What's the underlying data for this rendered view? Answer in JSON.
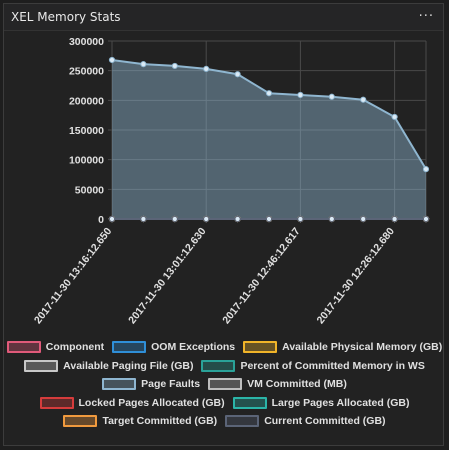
{
  "chart_data": {
    "type": "line",
    "title": "XEL Memory Stats",
    "categories": [
      "2017-11-30 13:16:12.650",
      null,
      null,
      "2017-11-30 13:01:12.630",
      null,
      null,
      "2017-11-30 12:46:12.617",
      null,
      null,
      "2017-11-30 12:26:12.680",
      null
    ],
    "ylim": [
      0,
      300000
    ],
    "yticks": [
      0,
      50000,
      100000,
      150000,
      200000,
      250000,
      300000
    ],
    "grid": true,
    "series": [
      {
        "name": "Component",
        "color": "#e05a7a",
        "values": [
          0,
          0,
          0,
          0,
          0,
          0,
          0,
          0,
          0,
          0,
          0
        ]
      },
      {
        "name": "OOM Exceptions",
        "color": "#2f8fd8",
        "values": [
          0,
          0,
          0,
          0,
          0,
          0,
          0,
          0,
          0,
          0,
          0
        ]
      },
      {
        "name": "Available Physical Memory (GB)",
        "color": "#f0b429",
        "values": [
          0,
          0,
          0,
          0,
          0,
          0,
          0,
          0,
          0,
          0,
          0
        ]
      },
      {
        "name": "Available Paging File (GB)",
        "color": "#c8c8c8",
        "values": [
          0,
          0,
          0,
          0,
          0,
          0,
          0,
          0,
          0,
          0,
          0
        ]
      },
      {
        "name": "Percent of Committed Memory in WS",
        "color": "#2aa198",
        "values": [
          0,
          0,
          0,
          0,
          0,
          0,
          0,
          0,
          0,
          0,
          0
        ]
      },
      {
        "name": "Page Faults",
        "color": "#8fb6d0",
        "values": [
          268000,
          261000,
          258000,
          253000,
          244000,
          212000,
          209000,
          206000,
          201000,
          172000,
          84000
        ]
      },
      {
        "name": "VM Committed (MB)",
        "color": "#bdbdbd",
        "values": [
          0,
          0,
          0,
          0,
          0,
          0,
          0,
          0,
          0,
          0,
          0
        ]
      },
      {
        "name": "Locked Pages Allocated (GB)",
        "color": "#d63c3c",
        "values": [
          0,
          0,
          0,
          0,
          0,
          0,
          0,
          0,
          0,
          0,
          0
        ]
      },
      {
        "name": "Large Pages Allocated (GB)",
        "color": "#2bb5a8",
        "values": [
          0,
          0,
          0,
          0,
          0,
          0,
          0,
          0,
          0,
          0,
          0
        ]
      },
      {
        "name": "Target Committed (GB)",
        "color": "#f09a3e",
        "values": [
          0,
          0,
          0,
          0,
          0,
          0,
          0,
          0,
          0,
          0,
          0
        ]
      },
      {
        "name": "Current Committed (GB)",
        "color": "#5b6477",
        "values": [
          0,
          0,
          0,
          0,
          0,
          0,
          0,
          0,
          0,
          0,
          0
        ]
      }
    ]
  }
}
